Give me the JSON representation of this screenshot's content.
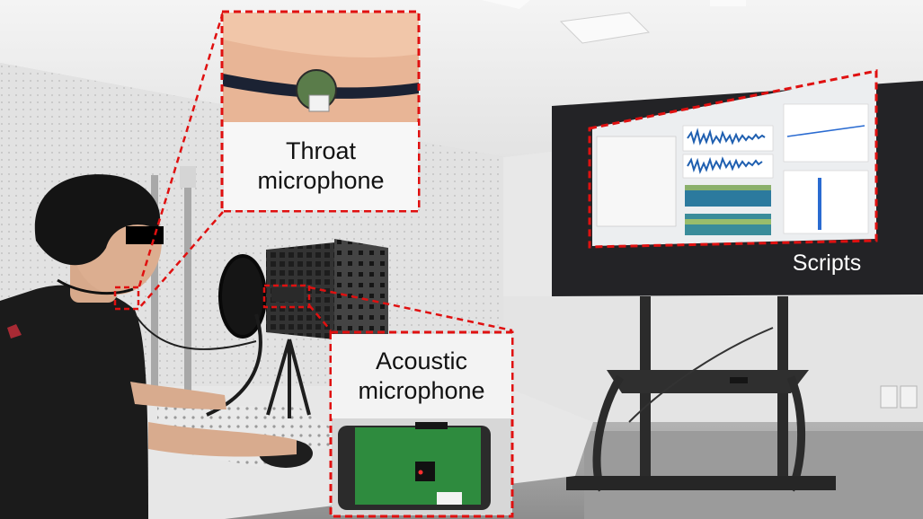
{
  "callouts": {
    "throat": {
      "label": "Throat\nmicrophone"
    },
    "acoustic": {
      "label": "Acoustic\nmicrophone"
    },
    "scripts": {
      "label": "Scripts"
    }
  },
  "annotation_color": "#e01010",
  "icons": [
    "throat-microphone-photo",
    "acoustic-microphone-board-photo",
    "monitor-screen-photo"
  ]
}
